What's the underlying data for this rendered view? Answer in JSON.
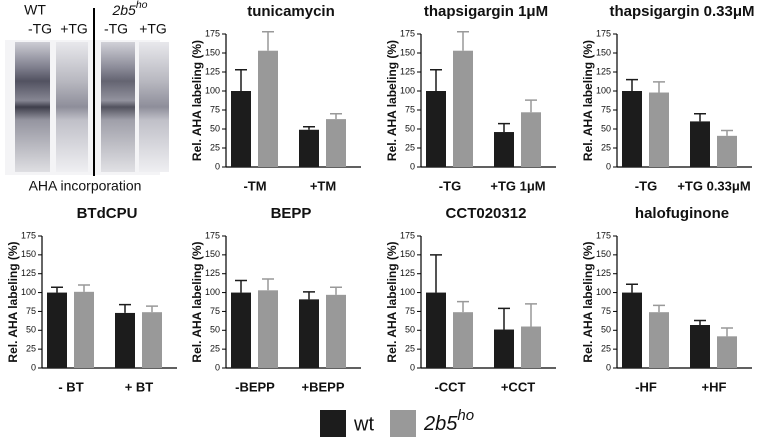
{
  "gel": {
    "groups": [
      "WT",
      {
        "base": "2b5",
        "sup": "ho"
      }
    ],
    "lanes": [
      "-TG",
      "+TG",
      "-TG",
      "+TG"
    ],
    "caption": "AHA incorporation"
  },
  "legend": [
    {
      "name": "wt",
      "color": "#1c1c1c"
    },
    {
      "name": {
        "base": "2b5",
        "sup": "ho"
      },
      "color": "#999999"
    }
  ],
  "chart_data": [
    {
      "type": "bar",
      "title": "tunicamycin",
      "ylabel": "Rel. AHA labeling (%)",
      "categories": [
        "-TM",
        "+TM"
      ],
      "series": [
        {
          "values": [
            100,
            49
          ],
          "errors": [
            28,
            4
          ]
        },
        {
          "values": [
            153,
            63
          ],
          "errors": [
            25,
            7
          ]
        }
      ],
      "ylim": [
        0,
        175
      ],
      "yticks": [
        0,
        25,
        50,
        75,
        100,
        125,
        150,
        175
      ]
    },
    {
      "type": "bar",
      "title": "thapsigargin 1μM",
      "ylabel": "Rel. AHA labeling (%)",
      "categories": [
        "-TG",
        "+TG 1μM"
      ],
      "series": [
        {
          "values": [
            100,
            46
          ],
          "errors": [
            28,
            11
          ]
        },
        {
          "values": [
            153,
            72
          ],
          "errors": [
            25,
            16
          ]
        }
      ],
      "ylim": [
        0,
        175
      ],
      "yticks": [
        0,
        25,
        50,
        75,
        100,
        125,
        150,
        175
      ]
    },
    {
      "type": "bar",
      "title": "thapsigargin 0.33μM",
      "ylabel": "Rel. AHA labeling (%)",
      "categories": [
        "-TG",
        "+TG 0.33μM"
      ],
      "series": [
        {
          "values": [
            100,
            60
          ],
          "errors": [
            15,
            10
          ]
        },
        {
          "values": [
            98,
            41
          ],
          "errors": [
            14,
            7
          ]
        }
      ],
      "ylim": [
        0,
        175
      ],
      "yticks": [
        0,
        25,
        50,
        75,
        100,
        125,
        150,
        175
      ]
    },
    {
      "type": "bar",
      "title": "BTdCPU",
      "ylabel": "Rel. AHA labeling (%)",
      "categories": [
        "- BT",
        "+ BT"
      ],
      "series": [
        {
          "values": [
            100,
            73
          ],
          "errors": [
            7,
            11
          ]
        },
        {
          "values": [
            101,
            74
          ],
          "errors": [
            9,
            8
          ]
        }
      ],
      "ylim": [
        0,
        175
      ],
      "yticks": [
        0,
        25,
        50,
        75,
        100,
        125,
        150,
        175
      ]
    },
    {
      "type": "bar",
      "title": "BEPP",
      "ylabel": "Rel. AHA labeling (%)",
      "categories": [
        "-BEPP",
        "+BEPP"
      ],
      "series": [
        {
          "values": [
            100,
            91
          ],
          "errors": [
            16,
            10
          ]
        },
        {
          "values": [
            103,
            97
          ],
          "errors": [
            15,
            10
          ]
        }
      ],
      "ylim": [
        0,
        175
      ],
      "yticks": [
        0,
        25,
        50,
        75,
        100,
        125,
        150,
        175
      ]
    },
    {
      "type": "bar",
      "title": "CCT020312",
      "ylabel": "Rel. AHA labeling (%)",
      "categories": [
        "-CCT",
        "+CCT"
      ],
      "series": [
        {
          "values": [
            100,
            51
          ],
          "errors": [
            50,
            28
          ]
        },
        {
          "values": [
            74,
            55
          ],
          "errors": [
            14,
            30
          ]
        }
      ],
      "ylim": [
        0,
        175
      ],
      "yticks": [
        0,
        25,
        50,
        75,
        100,
        125,
        150,
        175
      ]
    },
    {
      "type": "bar",
      "title": "halofuginone",
      "ylabel": "Rel. AHA labeling (%)",
      "categories": [
        "-HF",
        "+HF"
      ],
      "series": [
        {
          "values": [
            100,
            57
          ],
          "errors": [
            11,
            6
          ]
        },
        {
          "values": [
            74,
            42
          ],
          "errors": [
            9,
            11
          ]
        }
      ],
      "ylim": [
        0,
        175
      ],
      "yticks": [
        0,
        25,
        50,
        75,
        100,
        125,
        150,
        175
      ]
    }
  ]
}
